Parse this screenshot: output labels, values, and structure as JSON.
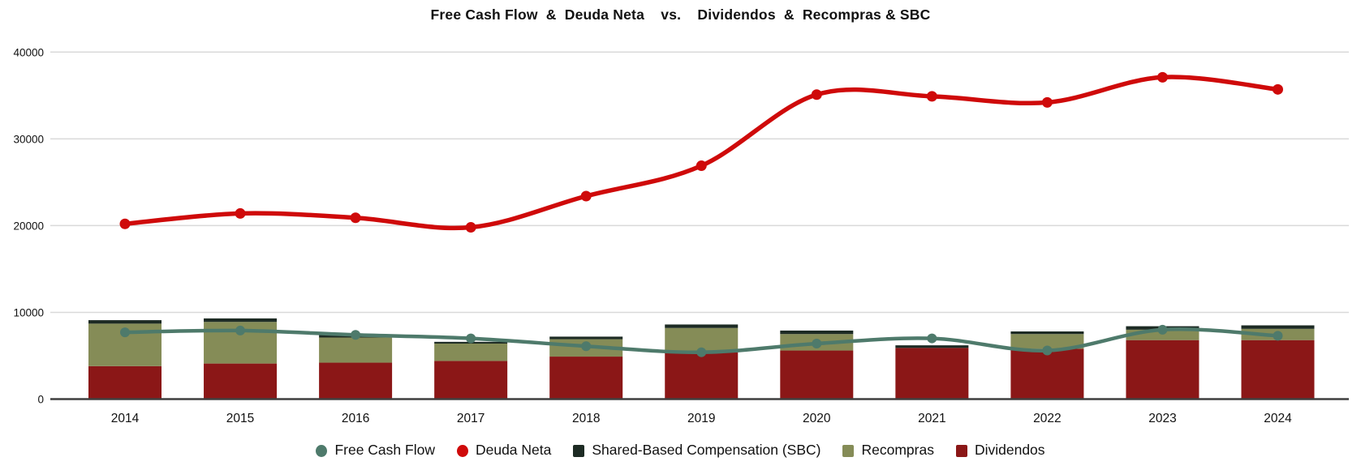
{
  "chart_data": {
    "type": "combo: stacked bar + line",
    "title": "Free Cash Flow  &  Deuda Neta    vs.    Dividendos  &  Recompras & SBC",
    "categories": [
      "2014",
      "2015",
      "2016",
      "2017",
      "2018",
      "2019",
      "2020",
      "2021",
      "2022",
      "2023",
      "2024"
    ],
    "bar_series": [
      {
        "name": "Dividendos",
        "color": "#8b1717",
        "values": [
          3800,
          4100,
          4200,
          4400,
          4900,
          5400,
          5600,
          5900,
          5800,
          6800,
          6800
        ]
      },
      {
        "name": "Recompras",
        "color": "#858c57",
        "values": [
          4900,
          4800,
          2900,
          2000,
          2000,
          2800,
          1900,
          0,
          1700,
          1200,
          1300
        ]
      },
      {
        "name": "Shared-Based Compensation (SBC)",
        "color": "#1d2b24",
        "values": [
          400,
          400,
          300,
          200,
          300,
          400,
          400,
          300,
          300,
          400,
          400
        ]
      }
    ],
    "line_series": [
      {
        "name": "Free Cash Flow",
        "color": "#4e7a6b",
        "stroke_width": 4.5,
        "marker_radius": 6,
        "values": [
          7700,
          7900,
          7400,
          7000,
          6100,
          5400,
          6400,
          7000,
          5600,
          8000,
          7300
        ]
      },
      {
        "name": "Deuda Neta",
        "color": "#cf0a0a",
        "stroke_width": 5.5,
        "marker_radius": 6.5,
        "values": [
          20200,
          21400,
          20900,
          19800,
          23400,
          26900,
          35100,
          34900,
          34200,
          37100,
          35700
        ]
      }
    ],
    "ylim": [
      0,
      40000
    ],
    "y_ticks": [
      0,
      10000,
      20000,
      30000,
      40000
    ],
    "grid": "horizontal gridlines on",
    "legend_position": "bottom",
    "legend": [
      {
        "label": "Free Cash Flow",
        "marker": "circle",
        "color": "#4e7a6b"
      },
      {
        "label": "Deuda Neta",
        "marker": "circle",
        "color": "#cf0a0a"
      },
      {
        "label": "Shared-Based Compensation (SBC)",
        "marker": "square",
        "color": "#1d2b24"
      },
      {
        "label": "Recompras",
        "marker": "square",
        "color": "#858c57"
      },
      {
        "label": "Dividendos",
        "marker": "square",
        "color": "#8b1717"
      }
    ]
  },
  "colors": {
    "background": "#ffffff",
    "gridline": "#d9d9d9",
    "axis_line": "#3f3f3f",
    "text": "#111111"
  }
}
